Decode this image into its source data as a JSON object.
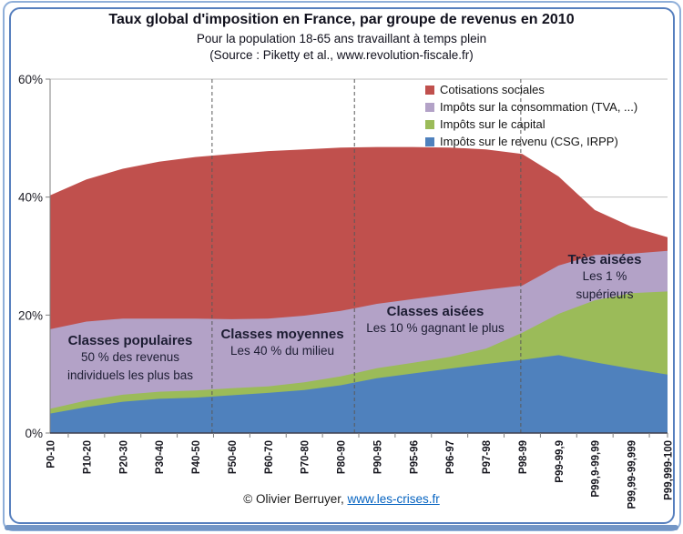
{
  "header": {
    "title": "Taux global d'imposition en France, par groupe de revenus en 2010",
    "subtitle": "Pour la population 18-65 ans travaillant à temps plein",
    "source": "(Source : Piketty et al., www.revolution-fiscale.fr)"
  },
  "legend": [
    {
      "label": "Cotisations sociales",
      "color": "#C0504D"
    },
    {
      "label": "Impôts sur la consommation (TVA, ...)",
      "color": "#B3A2C7"
    },
    {
      "label": "Impôts sur le capital",
      "color": "#9BBB59"
    },
    {
      "label": "Impôts sur le revenu (CSG, IRPP)",
      "color": "#4F81BD"
    }
  ],
  "chart_data": {
    "type": "area",
    "stacked": true,
    "title": "Taux global d'imposition en France, par groupe de revenus en 2010",
    "categories": [
      "P0-10",
      "P10-20",
      "P20-30",
      "P30-40",
      "P40-50",
      "P50-60",
      "P60-70",
      "P70-80",
      "P80-90",
      "P90-95",
      "P95-96",
      "P96-97",
      "P97-98",
      "P98-99",
      "P99-99,9",
      "P99,9-99,99",
      "P99,99-99,999",
      "P99,999-100"
    ],
    "series": [
      {
        "name": "Impôts sur le revenu (CSG, IRPP)",
        "color": "#4F81BD",
        "values": [
          3.3,
          4.4,
          5.3,
          5.8,
          6.0,
          6.4,
          6.8,
          7.3,
          8.1,
          9.3,
          10.1,
          10.9,
          11.7,
          12.4,
          13.2,
          12.0,
          10.9,
          9.9
        ]
      },
      {
        "name": "Impôts sur le capital",
        "color": "#9BBB59",
        "values": [
          0.8,
          1.1,
          1.2,
          1.2,
          1.2,
          1.2,
          1.1,
          1.3,
          1.5,
          1.7,
          1.8,
          2.0,
          2.6,
          4.6,
          7.0,
          10.5,
          12.8,
          14.1
        ]
      },
      {
        "name": "Impôts sur la consommation (TVA, ...)",
        "color": "#B3A2C7",
        "values": [
          13.5,
          13.4,
          12.9,
          12.4,
          12.2,
          11.7,
          11.5,
          11.3,
          11.1,
          10.9,
          10.8,
          10.6,
          10.0,
          8.0,
          8.2,
          7.7,
          6.7,
          6.9
        ]
      },
      {
        "name": "Cotisations sociales",
        "color": "#C0504D",
        "values": [
          22.7,
          24.1,
          25.4,
          26.6,
          27.4,
          28.0,
          28.4,
          28.2,
          27.7,
          26.6,
          25.8,
          24.9,
          23.8,
          22.3,
          15.1,
          7.6,
          4.6,
          2.3
        ]
      }
    ],
    "ylim": [
      0,
      60
    ],
    "yticks": [
      {
        "value": 0,
        "label": "0%"
      },
      {
        "value": 20,
        "label": "20%"
      },
      {
        "value": 40,
        "label": "40%"
      },
      {
        "value": 60,
        "label": "60%"
      }
    ],
    "grid": true,
    "legend_position": "top-right",
    "dividers": {
      "positions": [
        4.46,
        8.38,
        12.96
      ],
      "style": "dashed",
      "color": "#595959"
    }
  },
  "annotations": [
    {
      "title": "Classes populaires",
      "lines": [
        "50 % des revenus",
        "individuels les plus bas"
      ]
    },
    {
      "title": "Classes moyennes",
      "lines": [
        "Les 40 % du milieu"
      ]
    },
    {
      "title": "Classes aisées",
      "lines": [
        "Les 10 % gagnant le plus"
      ]
    },
    {
      "title": "Très aisées",
      "lines": [
        "Les 1 %",
        "supérieurs"
      ]
    }
  ],
  "footer": {
    "text": "© Olivier Berruyer, ",
    "link_text": "www.les-crises.fr"
  },
  "colors": {
    "frame_border": "#567FBE",
    "grid": "#BFBFBF",
    "axis": "#3F3F4E",
    "tick": "#7F7F7F",
    "divider": "#595959",
    "link": "#0563C1",
    "text": "#1d1d33"
  }
}
